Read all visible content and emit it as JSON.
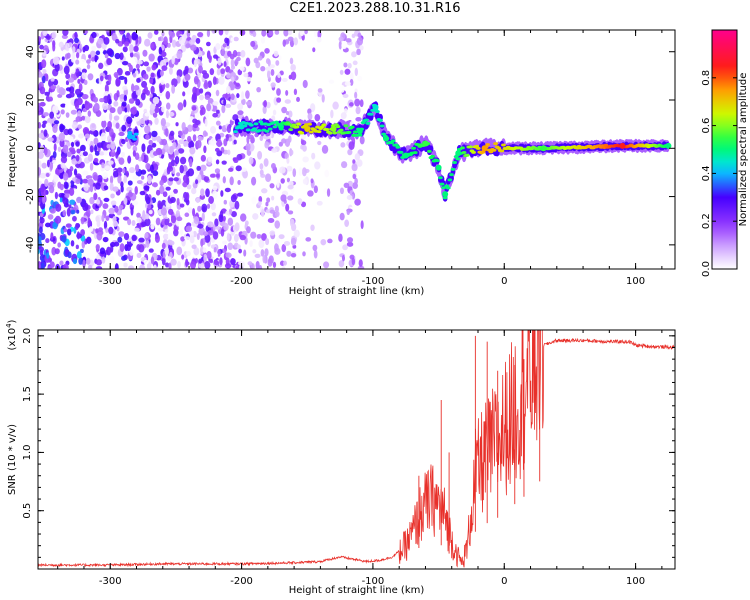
{
  "title": "C2E1.2023.288.10.31.R16",
  "chart_data": [
    {
      "type": "heatmap",
      "xlabel": "Height of straight line (km)",
      "ylabel": "Frequency (Hz)",
      "xlim": [
        -355,
        130
      ],
      "ylim": [
        -50,
        49
      ],
      "x_ticks": [
        -300,
        -200,
        -100,
        0,
        100
      ],
      "y_ticks": [
        -40,
        -20,
        0,
        20,
        40
      ],
      "x_tick_labels": [
        "-300",
        "-200",
        "-100",
        "0",
        "100"
      ],
      "y_tick_labels": [
        "-40",
        "-20",
        "0",
        "20",
        "40"
      ],
      "colorbar": {
        "label": "Normalized spectral amplitude",
        "range": [
          0,
          1
        ],
        "ticks": [
          0,
          0.2,
          0.4,
          0.6,
          0.8
        ],
        "tick_labels": [
          "0.0",
          "0.2",
          "0.4",
          "0.6",
          "0.8"
        ],
        "colormap": [
          "#ffffff",
          "#9b30ff",
          "#3a00ff",
          "#00ffff",
          "#00ff00",
          "#ffff00",
          "#ff4000",
          "#ff0080"
        ]
      },
      "ridge": [
        {
          "x": -285,
          "f": 5,
          "amp": 0.4
        },
        {
          "x": -200,
          "f": 9,
          "amp": 0.45
        },
        {
          "x": -170,
          "f": 9,
          "amp": 0.5
        },
        {
          "x": -150,
          "f": 8,
          "amp": 0.7
        },
        {
          "x": -130,
          "f": 8,
          "amp": 0.6
        },
        {
          "x": -110,
          "f": 7,
          "amp": 0.5
        },
        {
          "x": -98,
          "f": 17,
          "amp": 0.45
        },
        {
          "x": -90,
          "f": 4,
          "amp": 0.5
        },
        {
          "x": -75,
          "f": -3,
          "amp": 0.5
        },
        {
          "x": -60,
          "f": 2,
          "amp": 0.55
        },
        {
          "x": -50,
          "f": -8,
          "amp": 0.5
        },
        {
          "x": -45,
          "f": -19,
          "amp": 0.5
        },
        {
          "x": -35,
          "f": -2,
          "amp": 0.5
        },
        {
          "x": -15,
          "f": 0,
          "amp": 0.75
        },
        {
          "x": 30,
          "f": 0,
          "amp": 0.55
        },
        {
          "x": 90,
          "f": 1,
          "amp": 0.85
        },
        {
          "x": 125,
          "f": 1,
          "amp": 0.5
        }
      ]
    },
    {
      "type": "line",
      "xlabel": "Height of straight line (km)",
      "ylabel": "SNR (10 * v/v)",
      "y_multiplier": "(x10",
      "y_multiplier_exp": "4",
      "y_multiplier_close": ")",
      "xlim": [
        -355,
        130
      ],
      "ylim": [
        0,
        2.05
      ],
      "x_ticks": [
        -300,
        -200,
        -100,
        0,
        100
      ],
      "y_ticks": [
        0.5,
        1.0,
        1.5,
        2.0
      ],
      "x_tick_labels": [
        "-300",
        "-200",
        "-100",
        "0",
        "100"
      ],
      "y_tick_labels": [
        "0.5",
        "1.0",
        "1.5",
        "2.0"
      ],
      "series": [
        {
          "color": "#e8302a",
          "points": [
            [
              -355,
              0.03
            ],
            [
              -300,
              0.03
            ],
            [
              -280,
              0.035
            ],
            [
              -260,
              0.04
            ],
            [
              -240,
              0.04
            ],
            [
              -220,
              0.04
            ],
            [
              -200,
              0.04
            ],
            [
              -180,
              0.045
            ],
            [
              -160,
              0.05
            ],
            [
              -140,
              0.06
            ],
            [
              -125,
              0.1
            ],
            [
              -115,
              0.08
            ],
            [
              -105,
              0.06
            ],
            [
              -95,
              0.07
            ],
            [
              -85,
              0.1
            ],
            [
              -75,
              0.2
            ],
            [
              -70,
              0.3
            ],
            [
              -65,
              0.45
            ],
            [
              -60,
              0.55
            ],
            [
              -55,
              0.6
            ],
            [
              -50,
              0.55
            ],
            [
              -45,
              0.45
            ],
            [
              -40,
              0.25
            ],
            [
              -35,
              0.1
            ],
            [
              -32,
              0.05
            ],
            [
              -28,
              0.2
            ],
            [
              -25,
              0.5
            ],
            [
              -22,
              0.8
            ],
            [
              -18,
              0.9
            ],
            [
              -12,
              1.0
            ],
            [
              -5,
              1.1
            ],
            [
              0,
              1.2
            ],
            [
              5,
              1.3
            ],
            [
              10,
              1.45
            ],
            [
              15,
              1.55
            ],
            [
              20,
              1.7
            ],
            [
              25,
              1.85
            ],
            [
              30,
              1.92
            ],
            [
              40,
              1.96
            ],
            [
              60,
              1.96
            ],
            [
              80,
              1.95
            ],
            [
              95,
              1.95
            ],
            [
              100,
              1.92
            ],
            [
              110,
              1.91
            ],
            [
              130,
              1.9
            ]
          ],
          "spikes": [
            [
              -22,
              2.0
            ],
            [
              -48,
              1.45
            ],
            [
              -13,
              1.95
            ],
            [
              27,
              2.05
            ],
            [
              -65,
              0.8
            ],
            [
              -42,
              1.0
            ],
            [
              -5,
              1.7
            ],
            [
              8,
              1.75
            ],
            [
              15,
              1.8
            ]
          ]
        }
      ]
    }
  ]
}
